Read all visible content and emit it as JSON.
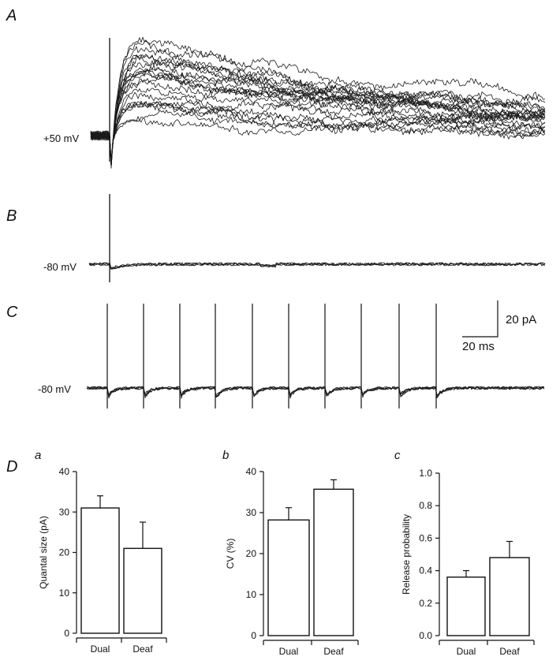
{
  "panels": {
    "A": {
      "letter": "A",
      "holding": "+50 mV"
    },
    "B": {
      "letter": "B",
      "holding": "-80 mV"
    },
    "C": {
      "letter": "C",
      "holding": "-80 mV",
      "scale_y": "20 pA",
      "scale_x": "20 ms"
    },
    "D": {
      "letter": "D"
    }
  },
  "chart_data": [
    {
      "type": "bar",
      "panel": "a",
      "categories": [
        "Dual",
        "Deaf"
      ],
      "values": [
        31,
        21
      ],
      "errors": [
        3,
        6.5
      ],
      "ylabel": "Quantal size (pA)",
      "ylim": [
        0,
        40
      ],
      "yticks": [
        "0",
        "10",
        "20",
        "30",
        "40"
      ]
    },
    {
      "type": "bar",
      "panel": "b",
      "categories": [
        "Dual",
        "Deaf"
      ],
      "values": [
        28.2,
        35.7
      ],
      "errors": [
        3,
        2.3
      ],
      "ylabel": "CV (%)",
      "ylim": [
        0,
        40
      ],
      "yticks": [
        "0",
        "10",
        "20",
        "30",
        "40"
      ]
    },
    {
      "type": "bar",
      "panel": "c",
      "categories": [
        "Dual",
        "Deaf"
      ],
      "values": [
        0.36,
        0.48
      ],
      "errors": [
        0.04,
        0.1
      ],
      "ylabel": "Release probability",
      "ylim": [
        0,
        1.0
      ],
      "yticks": [
        "0.0",
        "0.2",
        "0.4",
        "0.6",
        "0.8",
        "1.0"
      ]
    }
  ]
}
